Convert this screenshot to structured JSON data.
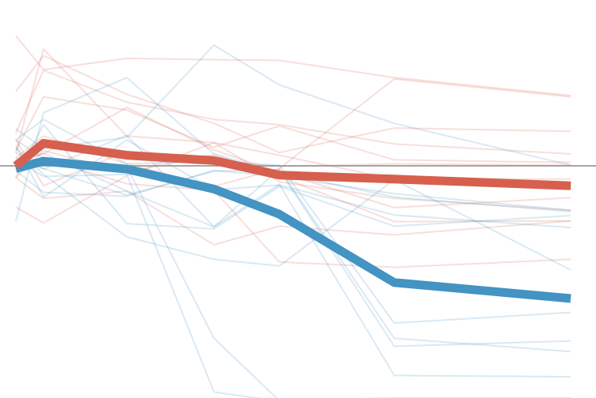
{
  "chart_data": {
    "type": "line",
    "x": [
      0,
      1,
      2,
      3,
      4,
      5,
      6
    ],
    "ylim": [
      -3.5,
      2.5
    ],
    "baseline": 0,
    "grid": false,
    "colors": {
      "red": "#d6604d",
      "blue": "#4393c3",
      "baseline": "#8a8a8a",
      "background": "#ffffff"
    },
    "highlight_series": [
      {
        "color": "red",
        "values": [
          0.0,
          0.34,
          0.16,
          0.08,
          -0.14,
          -0.2,
          -0.3
        ]
      },
      {
        "color": "blue",
        "values": [
          -0.04,
          0.07,
          -0.05,
          -0.35,
          -0.73,
          -1.76,
          -2.0
        ]
      }
    ],
    "background_series": [
      {
        "color": "red",
        "values": [
          1.96,
          1.45,
          1.62,
          1.6,
          1.59,
          1.33,
          1.06
        ]
      },
      {
        "color": "red",
        "values": [
          1.12,
          1.66,
          1.08,
          0.64,
          0.2,
          0.57,
          0.52
        ]
      },
      {
        "color": "red",
        "values": [
          0.49,
          1.44,
          0.96,
          0.7,
          0.62,
          0.33,
          0.18
        ]
      },
      {
        "color": "red",
        "values": [
          0.23,
          1.04,
          0.84,
          0.28,
          0.6,
          0.09,
          0.05
        ]
      },
      {
        "color": "red",
        "values": [
          0.19,
          1.76,
          0.45,
          0.35,
          0.16,
          -0.2,
          -0.2
        ]
      },
      {
        "color": "red",
        "values": [
          0.07,
          0.18,
          0.88,
          0.24,
          -0.1,
          -0.63,
          -0.48
        ]
      },
      {
        "color": "red",
        "values": [
          0.06,
          0.11,
          -0.27,
          -0.37,
          -1.45,
          -1.53,
          -1.41
        ]
      },
      {
        "color": "red",
        "values": [
          -0.18,
          -0.49,
          -0.38,
          -1.19,
          -0.91,
          -1.04,
          -0.83
        ]
      },
      {
        "color": "red",
        "values": [
          -0.62,
          -0.86,
          -0.15,
          0.35,
          -0.24,
          -0.49,
          -0.67
        ]
      },
      {
        "color": "red",
        "values": [
          0.12,
          0.45,
          0.03,
          -0.31,
          -0.04,
          1.31,
          1.04
        ]
      },
      {
        "color": "red",
        "values": [
          0.39,
          -0.3,
          0.22,
          0.06,
          -0.01,
          0.03,
          0.01
        ]
      },
      {
        "color": "red",
        "values": [
          -0.18,
          0.23,
          -0.1,
          0.17,
          -0.16,
          -0.84,
          -0.83
        ]
      },
      {
        "color": "blue",
        "values": [
          0.56,
          0.26,
          0.43,
          1.82,
          1.22,
          0.64,
          0.01
        ]
      },
      {
        "color": "blue",
        "values": [
          -0.07,
          -0.4,
          -0.46,
          -0.07,
          -0.16,
          -0.42,
          -0.67
        ]
      },
      {
        "color": "blue",
        "values": [
          0.39,
          0.7,
          0.03,
          0.07,
          0.01,
          -2.37,
          -2.21
        ]
      },
      {
        "color": "blue",
        "values": [
          0.2,
          -0.05,
          0.46,
          -0.92,
          -0.05,
          -2.6,
          -2.8
        ]
      },
      {
        "color": "blue",
        "values": [
          0.05,
          0.19,
          -0.38,
          -0.92,
          -0.28,
          -3.16,
          -3.18
        ]
      },
      {
        "color": "blue",
        "values": [
          -0.84,
          0.8,
          1.33,
          0.18,
          -0.1,
          -0.47,
          -0.69
        ]
      },
      {
        "color": "blue",
        "values": [
          0.27,
          -0.13,
          -1.07,
          -1.41,
          -1.51,
          -0.21,
          -1.57
        ]
      },
      {
        "color": "blue",
        "values": [
          -0.17,
          0.62,
          -0.87,
          -0.95,
          -0.31,
          -0.91,
          -0.75
        ]
      },
      {
        "color": "blue",
        "values": [
          0.31,
          -0.47,
          0.39,
          -0.36,
          -0.29,
          -0.74,
          -0.93
        ]
      },
      {
        "color": "blue",
        "values": [
          0.39,
          0.11,
          -0.01,
          -2.6,
          -3.54,
          -3.5,
          -3.5
        ]
      },
      {
        "color": "blue",
        "values": [
          0.09,
          -0.16,
          -0.13,
          -3.41,
          -3.55,
          -3.53,
          -3.55
        ]
      },
      {
        "color": "blue",
        "values": [
          0.12,
          -0.04,
          -0.44,
          -0.08,
          -0.06,
          -2.72,
          -2.64
        ]
      }
    ]
  }
}
